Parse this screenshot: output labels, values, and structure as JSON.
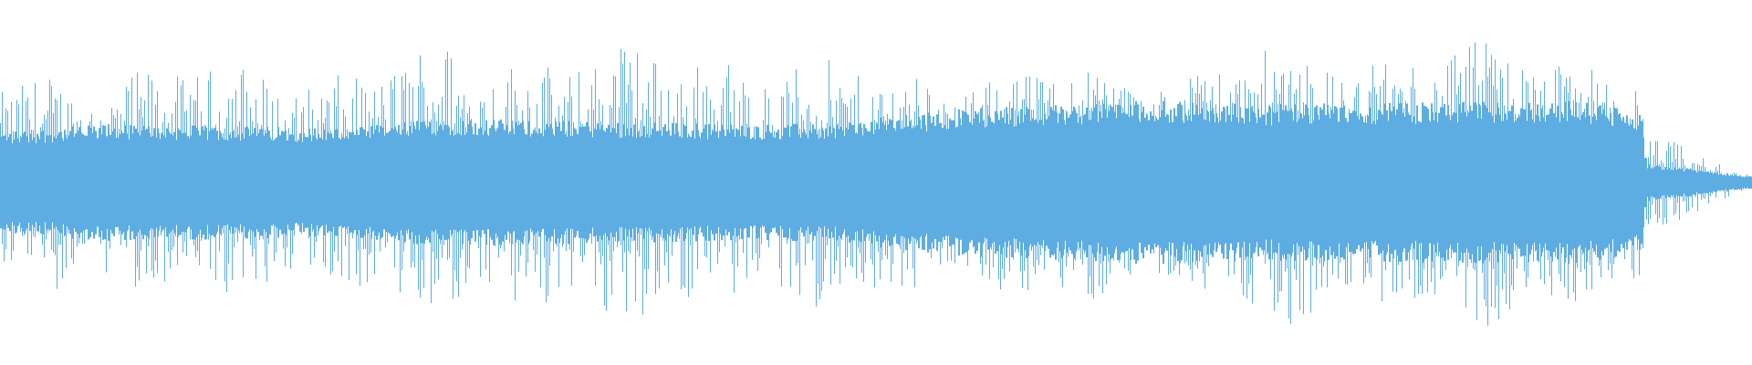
{
  "waveform": {
    "color": "#5dade2",
    "background": "#ffffff",
    "duration_fraction_main": 0.938,
    "amplitude_envelope": [
      {
        "t": 0.0,
        "peak": 0.6,
        "body": 0.26
      },
      {
        "t": 0.06,
        "peak": 0.72,
        "body": 0.3
      },
      {
        "t": 0.2,
        "peak": 0.7,
        "body": 0.28
      },
      {
        "t": 0.25,
        "peak": 0.85,
        "body": 0.33
      },
      {
        "t": 0.42,
        "peak": 0.82,
        "body": 0.3
      },
      {
        "t": 0.47,
        "peak": 0.72,
        "body": 0.3
      },
      {
        "t": 0.55,
        "peak": 0.68,
        "body": 0.38
      },
      {
        "t": 0.65,
        "peak": 0.7,
        "body": 0.42
      },
      {
        "t": 0.72,
        "peak": 0.82,
        "body": 0.4
      },
      {
        "t": 0.9,
        "peak": 0.82,
        "body": 0.42
      },
      {
        "t": 0.936,
        "peak": 0.72,
        "body": 0.36
      },
      {
        "t": 0.939,
        "peak": 0.3,
        "body": 0.1
      },
      {
        "t": 1.0,
        "peak": 0.05,
        "body": 0.03
      }
    ]
  }
}
